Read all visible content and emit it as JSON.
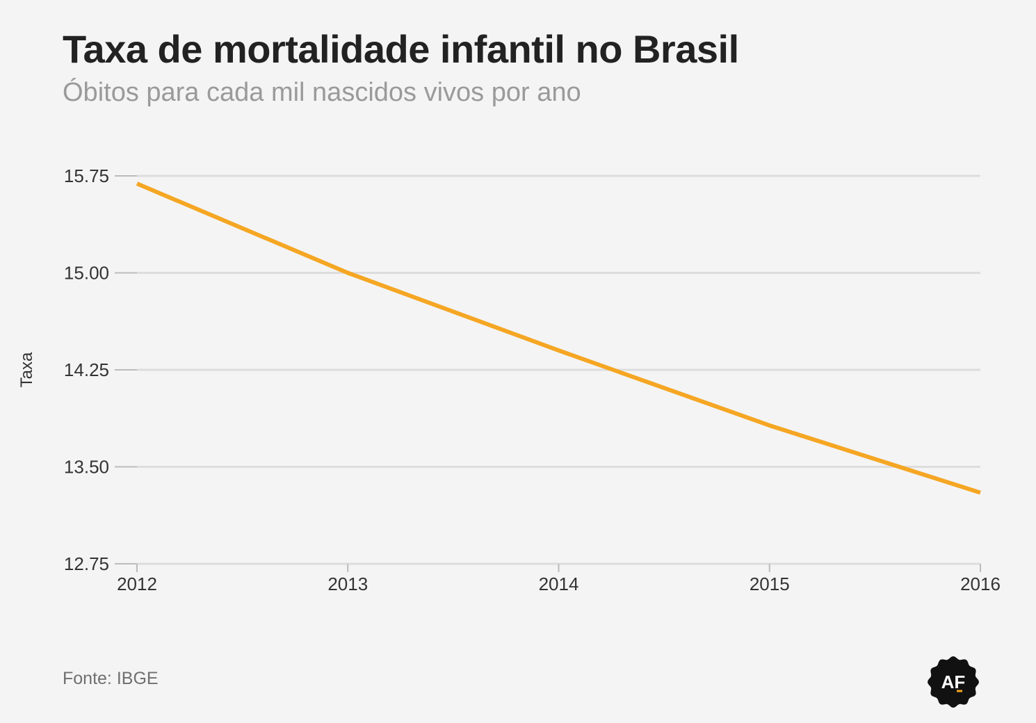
{
  "chart_data": {
    "type": "line",
    "title": "Taxa de mortalidade infantil no Brasil",
    "subtitle": "Óbitos para cada mil nascidos vivos por ano",
    "xlabel": "",
    "ylabel": "Taxa",
    "x": [
      "2012",
      "2013",
      "2014",
      "2015",
      "2016"
    ],
    "series": [
      {
        "values": [
          15.69,
          15.0,
          14.4,
          13.82,
          13.3
        ]
      }
    ],
    "ylim": [
      12.75,
      15.75
    ],
    "yticks": [
      "15.75",
      "15.00",
      "14.25",
      "13.50",
      "12.75"
    ],
    "grid": true,
    "legend": "none",
    "line_color": "#f5a623",
    "grid_color": "#dddddd"
  },
  "source": "Fonte: IBGE",
  "logo": {
    "icon": "af-badge-icon",
    "text": "AF",
    "color": "#111111"
  }
}
